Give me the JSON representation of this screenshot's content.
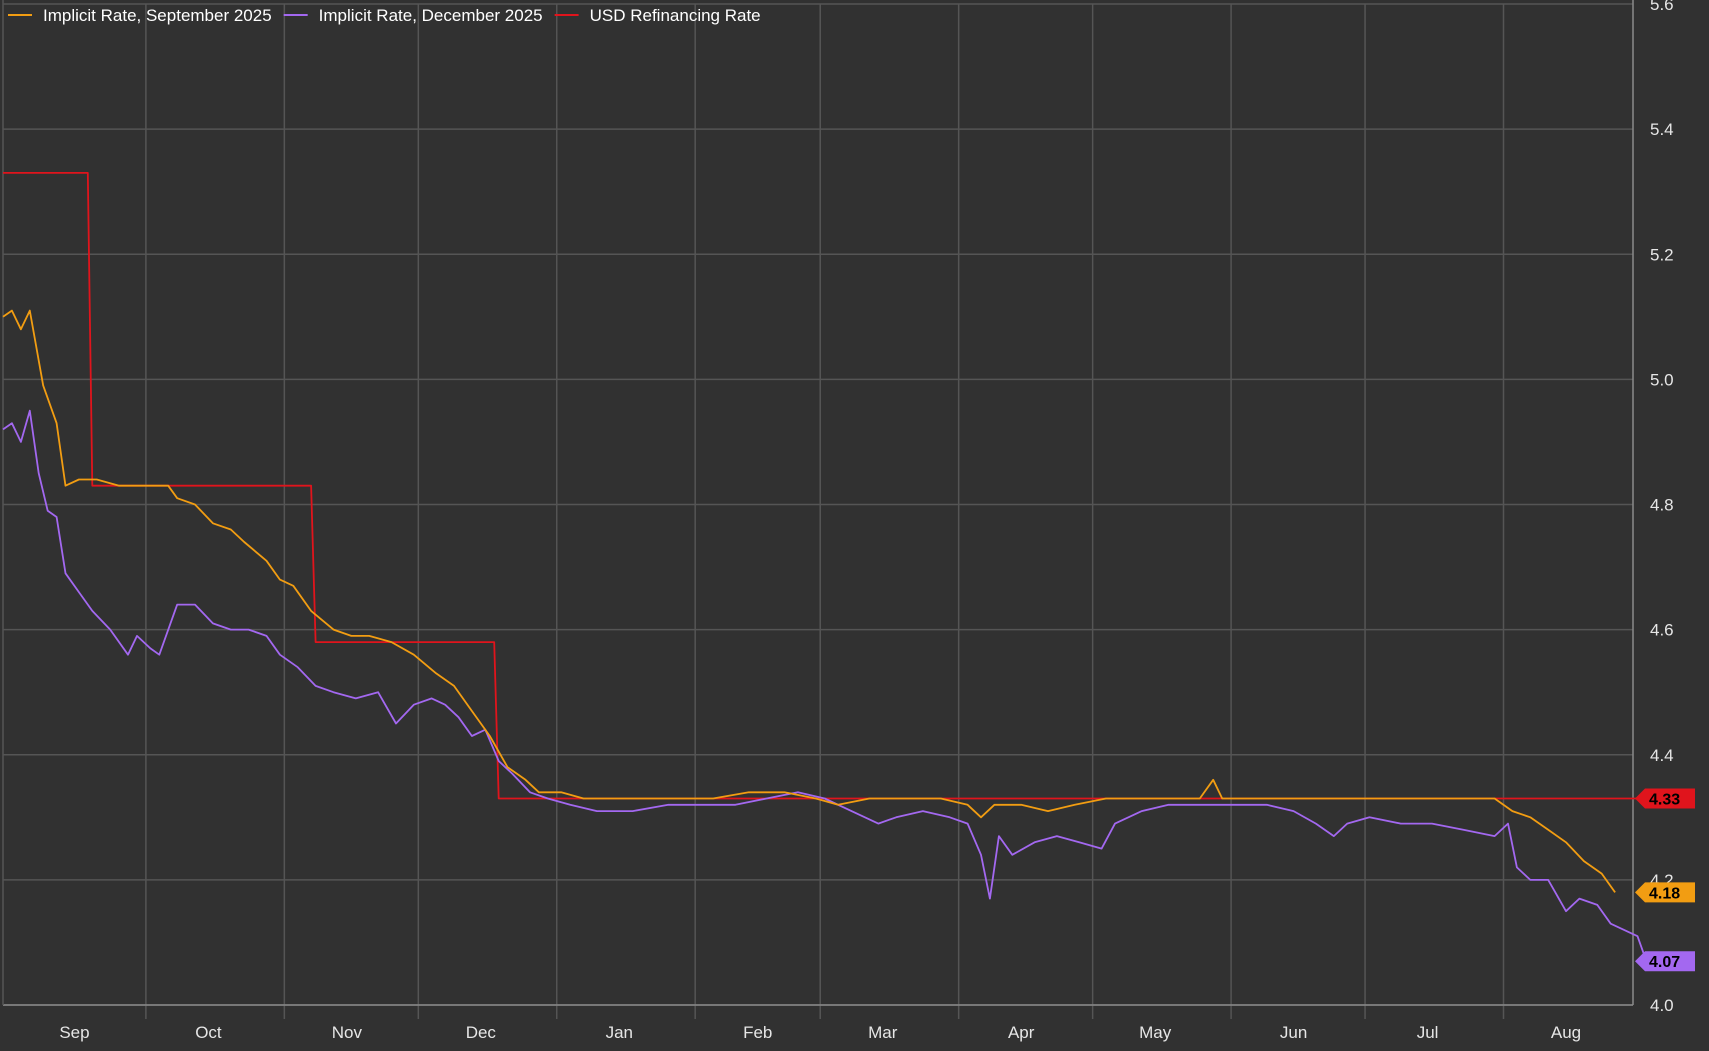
{
  "colors": {
    "background": "#313131",
    "grid": "#555555",
    "september": "#f29d12",
    "december": "#a368f0",
    "refinancing": "#e0141c"
  },
  "chart_data": {
    "type": "line",
    "y_axis_position": "right",
    "ylim": [
      4.0,
      5.6
    ],
    "y_ticks": [
      {
        "value": 4.0,
        "label": "4.0"
      },
      {
        "value": 4.2,
        "label": "4.2"
      },
      {
        "value": 4.4,
        "label": "4.4"
      },
      {
        "value": 4.6,
        "label": "4.6"
      },
      {
        "value": 4.8,
        "label": "4.8"
      },
      {
        "value": 5.0,
        "label": "5.0"
      },
      {
        "value": 5.2,
        "label": "5.2"
      },
      {
        "value": 5.4,
        "label": "5.4"
      },
      {
        "value": 5.6,
        "label": "5.6"
      }
    ],
    "x_range": [
      "2024-08-30",
      "2025-08-30"
    ],
    "month_ticks": [
      {
        "label": "Sep",
        "date": "2024-09-15"
      },
      {
        "label": "Oct",
        "date": "2024-10-15"
      },
      {
        "label": "Nov",
        "date": "2024-11-15"
      },
      {
        "label": "Dec",
        "date": "2024-12-15"
      },
      {
        "label": "Jan",
        "date": "2025-01-15"
      },
      {
        "label": "Feb",
        "date": "2025-02-15"
      },
      {
        "label": "Mar",
        "date": "2025-03-15"
      },
      {
        "label": "Apr",
        "date": "2025-04-15"
      },
      {
        "label": "May",
        "date": "2025-05-15"
      },
      {
        "label": "Jun",
        "date": "2025-06-15"
      },
      {
        "label": "Jul",
        "date": "2025-07-15"
      },
      {
        "label": "Aug",
        "date": "2025-08-15"
      }
    ],
    "grid": true,
    "legend": "top-left",
    "series": [
      {
        "name": "Implicit Rate, September 2025",
        "color": "#f29d12",
        "last_value_label": "4.18",
        "points": [
          [
            "2024-08-30",
            5.1
          ],
          [
            "2024-09-01",
            5.11
          ],
          [
            "2024-09-03",
            5.08
          ],
          [
            "2024-09-05",
            5.11
          ],
          [
            "2024-09-08",
            4.99
          ],
          [
            "2024-09-11",
            4.93
          ],
          [
            "2024-09-13",
            4.83
          ],
          [
            "2024-09-16",
            4.84
          ],
          [
            "2024-09-20",
            4.84
          ],
          [
            "2024-09-25",
            4.83
          ],
          [
            "2024-10-01",
            4.83
          ],
          [
            "2024-10-06",
            4.83
          ],
          [
            "2024-10-08",
            4.81
          ],
          [
            "2024-10-12",
            4.8
          ],
          [
            "2024-10-16",
            4.77
          ],
          [
            "2024-10-20",
            4.76
          ],
          [
            "2024-10-23",
            4.74
          ],
          [
            "2024-10-28",
            4.71
          ],
          [
            "2024-10-31",
            4.68
          ],
          [
            "2024-11-03",
            4.67
          ],
          [
            "2024-11-07",
            4.63
          ],
          [
            "2024-11-12",
            4.6
          ],
          [
            "2024-11-16",
            4.59
          ],
          [
            "2024-11-20",
            4.59
          ],
          [
            "2024-11-25",
            4.58
          ],
          [
            "2024-11-30",
            4.56
          ],
          [
            "2024-12-05",
            4.53
          ],
          [
            "2024-12-09",
            4.51
          ],
          [
            "2024-12-13",
            4.47
          ],
          [
            "2024-12-17",
            4.43
          ],
          [
            "2024-12-21",
            4.38
          ],
          [
            "2024-12-25",
            4.36
          ],
          [
            "2024-12-28",
            4.34
          ],
          [
            "2025-01-02",
            4.34
          ],
          [
            "2025-01-07",
            4.33
          ],
          [
            "2025-01-12",
            4.33
          ],
          [
            "2025-01-20",
            4.33
          ],
          [
            "2025-01-28",
            4.33
          ],
          [
            "2025-02-05",
            4.33
          ],
          [
            "2025-02-13",
            4.34
          ],
          [
            "2025-02-21",
            4.34
          ],
          [
            "2025-02-28",
            4.33
          ],
          [
            "2025-03-05",
            4.32
          ],
          [
            "2025-03-12",
            4.33
          ],
          [
            "2025-03-20",
            4.33
          ],
          [
            "2025-03-28",
            4.33
          ],
          [
            "2025-04-03",
            4.32
          ],
          [
            "2025-04-06",
            4.3
          ],
          [
            "2025-04-09",
            4.32
          ],
          [
            "2025-04-15",
            4.32
          ],
          [
            "2025-04-21",
            4.31
          ],
          [
            "2025-04-27",
            4.32
          ],
          [
            "2025-05-04",
            4.33
          ],
          [
            "2025-05-10",
            4.33
          ],
          [
            "2025-05-18",
            4.33
          ],
          [
            "2025-05-25",
            4.33
          ],
          [
            "2025-05-28",
            4.36
          ],
          [
            "2025-05-30",
            4.33
          ],
          [
            "2025-06-07",
            4.33
          ],
          [
            "2025-06-15",
            4.33
          ],
          [
            "2025-06-23",
            4.33
          ],
          [
            "2025-07-01",
            4.33
          ],
          [
            "2025-07-09",
            4.33
          ],
          [
            "2025-07-17",
            4.33
          ],
          [
            "2025-07-23",
            4.33
          ],
          [
            "2025-07-30",
            4.33
          ],
          [
            "2025-08-03",
            4.31
          ],
          [
            "2025-08-07",
            4.3
          ],
          [
            "2025-08-11",
            4.28
          ],
          [
            "2025-08-15",
            4.26
          ],
          [
            "2025-08-19",
            4.23
          ],
          [
            "2025-08-23",
            4.21
          ],
          [
            "2025-08-26",
            4.18
          ]
        ]
      },
      {
        "name": "Implicit Rate, December 2025",
        "color": "#a368f0",
        "last_value_label": "4.07",
        "points": [
          [
            "2024-08-30",
            4.92
          ],
          [
            "2024-09-01",
            4.93
          ],
          [
            "2024-09-03",
            4.9
          ],
          [
            "2024-09-05",
            4.95
          ],
          [
            "2024-09-07",
            4.85
          ],
          [
            "2024-09-09",
            4.79
          ],
          [
            "2024-09-11",
            4.78
          ],
          [
            "2024-09-13",
            4.69
          ],
          [
            "2024-09-16",
            4.66
          ],
          [
            "2024-09-19",
            4.63
          ],
          [
            "2024-09-23",
            4.6
          ],
          [
            "2024-09-27",
            4.56
          ],
          [
            "2024-09-29",
            4.59
          ],
          [
            "2024-10-02",
            4.57
          ],
          [
            "2024-10-04",
            4.56
          ],
          [
            "2024-10-08",
            4.64
          ],
          [
            "2024-10-12",
            4.64
          ],
          [
            "2024-10-16",
            4.61
          ],
          [
            "2024-10-20",
            4.6
          ],
          [
            "2024-10-24",
            4.6
          ],
          [
            "2024-10-28",
            4.59
          ],
          [
            "2024-10-31",
            4.56
          ],
          [
            "2024-11-04",
            4.54
          ],
          [
            "2024-11-08",
            4.51
          ],
          [
            "2024-11-12",
            4.5
          ],
          [
            "2024-11-17",
            4.49
          ],
          [
            "2024-11-22",
            4.5
          ],
          [
            "2024-11-26",
            4.45
          ],
          [
            "2024-11-30",
            4.48
          ],
          [
            "2024-12-04",
            4.49
          ],
          [
            "2024-12-07",
            4.48
          ],
          [
            "2024-12-10",
            4.46
          ],
          [
            "2024-12-13",
            4.43
          ],
          [
            "2024-12-16",
            4.44
          ],
          [
            "2024-12-19",
            4.39
          ],
          [
            "2024-12-22",
            4.37
          ],
          [
            "2024-12-26",
            4.34
          ],
          [
            "2024-12-30",
            4.33
          ],
          [
            "2025-01-04",
            4.32
          ],
          [
            "2025-01-10",
            4.31
          ],
          [
            "2025-01-18",
            4.31
          ],
          [
            "2025-01-26",
            4.32
          ],
          [
            "2025-02-03",
            4.32
          ],
          [
            "2025-02-10",
            4.32
          ],
          [
            "2025-02-17",
            4.33
          ],
          [
            "2025-02-24",
            4.34
          ],
          [
            "2025-03-02",
            4.33
          ],
          [
            "2025-03-08",
            4.31
          ],
          [
            "2025-03-14",
            4.29
          ],
          [
            "2025-03-18",
            4.3
          ],
          [
            "2025-03-24",
            4.31
          ],
          [
            "2025-03-30",
            4.3
          ],
          [
            "2025-04-03",
            4.29
          ],
          [
            "2025-04-06",
            4.24
          ],
          [
            "2025-04-08",
            4.17
          ],
          [
            "2025-04-10",
            4.27
          ],
          [
            "2025-04-13",
            4.24
          ],
          [
            "2025-04-18",
            4.26
          ],
          [
            "2025-04-23",
            4.27
          ],
          [
            "2025-04-28",
            4.26
          ],
          [
            "2025-05-03",
            4.25
          ],
          [
            "2025-05-06",
            4.29
          ],
          [
            "2025-05-12",
            4.31
          ],
          [
            "2025-05-18",
            4.32
          ],
          [
            "2025-05-26",
            4.32
          ],
          [
            "2025-06-02",
            4.32
          ],
          [
            "2025-06-09",
            4.32
          ],
          [
            "2025-06-15",
            4.31
          ],
          [
            "2025-06-20",
            4.29
          ],
          [
            "2025-06-24",
            4.27
          ],
          [
            "2025-06-27",
            4.29
          ],
          [
            "2025-07-02",
            4.3
          ],
          [
            "2025-07-09",
            4.29
          ],
          [
            "2025-07-16",
            4.29
          ],
          [
            "2025-07-23",
            4.28
          ],
          [
            "2025-07-30",
            4.27
          ],
          [
            "2025-08-02",
            4.29
          ],
          [
            "2025-08-04",
            4.22
          ],
          [
            "2025-08-07",
            4.2
          ],
          [
            "2025-08-11",
            4.2
          ],
          [
            "2025-08-15",
            4.15
          ],
          [
            "2025-08-18",
            4.17
          ],
          [
            "2025-08-22",
            4.16
          ],
          [
            "2025-08-25",
            4.13
          ],
          [
            "2025-08-28",
            4.12
          ],
          [
            "2025-08-31",
            4.11
          ],
          [
            "2025-09-02",
            4.07
          ]
        ]
      },
      {
        "name": "USD Refinancing Rate",
        "color": "#e0141c",
        "last_value_label": "4.33",
        "points": [
          [
            "2024-08-30",
            5.33
          ],
          [
            "2024-09-18",
            5.33
          ],
          [
            "2024-09-19",
            4.83
          ],
          [
            "2024-11-07",
            4.83
          ],
          [
            "2024-11-08",
            4.58
          ],
          [
            "2024-12-18",
            4.58
          ],
          [
            "2024-12-19",
            4.33
          ],
          [
            "2025-09-05",
            4.33
          ]
        ]
      }
    ]
  }
}
